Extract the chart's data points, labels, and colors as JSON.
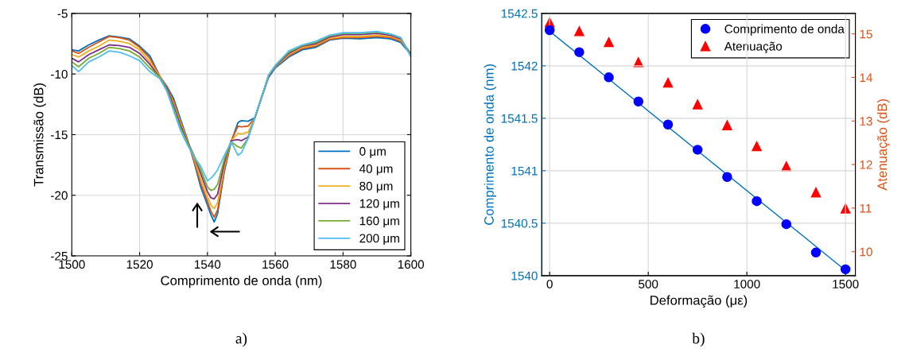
{
  "chart_data": [
    {
      "type": "line",
      "xlabel": "Comprimento de onda (nm)",
      "ylabel": "Transmissão (dB)",
      "x": [
        1500,
        1502,
        1505,
        1508,
        1511,
        1514,
        1517,
        1520,
        1523,
        1526,
        1528,
        1530,
        1532,
        1534,
        1536,
        1538,
        1540,
        1541,
        1542,
        1543,
        1545,
        1547,
        1549,
        1550,
        1552,
        1554,
        1556,
        1558,
        1560,
        1564,
        1568,
        1572,
        1576,
        1580,
        1585,
        1590,
        1594,
        1597,
        1600
      ],
      "series": [
        {
          "name": "0 μm",
          "color": "#0072bd",
          "values": [
            -8.0,
            -8.1,
            -7.6,
            -7.2,
            -6.85,
            -6.95,
            -7.1,
            -7.7,
            -8.5,
            -10.2,
            -11.0,
            -12.0,
            -13.7,
            -15.3,
            -17.2,
            -19.3,
            -20.8,
            -21.6,
            -22.2,
            -21.5,
            -18.0,
            -15.6,
            -14.0,
            -13.85,
            -13.9,
            -13.6,
            -11.9,
            -10.3,
            -9.5,
            -8.6,
            -8.0,
            -7.8,
            -7.2,
            -7.05,
            -7.1,
            -7.0,
            -7.1,
            -7.4,
            -8.4
          ]
        },
        {
          "name": "40 μm",
          "color": "#d95319",
          "values": [
            -8.1,
            -8.3,
            -7.8,
            -7.35,
            -6.9,
            -7.0,
            -7.2,
            -7.8,
            -8.7,
            -10.2,
            -11.1,
            -12.2,
            -13.9,
            -15.4,
            -17.1,
            -19.0,
            -20.5,
            -21.3,
            -21.8,
            -21.2,
            -17.9,
            -15.5,
            -14.3,
            -14.35,
            -14.3,
            -13.6,
            -11.9,
            -10.2,
            -9.4,
            -8.5,
            -7.9,
            -7.7,
            -7.15,
            -7.0,
            -7.0,
            -6.9,
            -7.0,
            -7.3,
            -8.3
          ]
        },
        {
          "name": "80 μm",
          "color": "#edb120",
          "values": [
            -8.4,
            -8.6,
            -8.1,
            -7.7,
            -7.2,
            -7.3,
            -7.5,
            -8.0,
            -9.0,
            -10.2,
            -11.2,
            -12.4,
            -14.0,
            -15.4,
            -16.9,
            -18.6,
            -20.1,
            -20.8,
            -21.1,
            -20.6,
            -17.6,
            -15.5,
            -14.9,
            -14.95,
            -14.8,
            -13.6,
            -11.9,
            -10.2,
            -9.4,
            -8.4,
            -7.8,
            -7.6,
            -7.05,
            -6.9,
            -6.9,
            -6.8,
            -6.9,
            -7.2,
            -8.3
          ]
        },
        {
          "name": "120 μm",
          "color": "#7e2f8e",
          "values": [
            -8.7,
            -9.0,
            -8.4,
            -8.0,
            -7.6,
            -7.65,
            -7.8,
            -8.3,
            -9.2,
            -10.3,
            -11.2,
            -12.6,
            -14.2,
            -15.5,
            -16.7,
            -18.2,
            -19.7,
            -20.2,
            -20.3,
            -19.9,
            -17.3,
            -15.5,
            -15.4,
            -15.5,
            -15.2,
            -13.6,
            -11.9,
            -10.2,
            -9.35,
            -8.3,
            -7.7,
            -7.5,
            -6.95,
            -6.75,
            -6.75,
            -6.65,
            -6.8,
            -7.1,
            -8.4
          ]
        },
        {
          "name": "160 μm",
          "color": "#77ac30",
          "values": [
            -9.0,
            -9.4,
            -8.7,
            -8.3,
            -7.8,
            -7.9,
            -8.1,
            -8.6,
            -9.5,
            -10.3,
            -11.3,
            -12.8,
            -14.4,
            -15.6,
            -16.7,
            -17.9,
            -19.3,
            -19.6,
            -19.5,
            -19.1,
            -17.0,
            -15.6,
            -16.0,
            -16.1,
            -15.3,
            -13.6,
            -11.9,
            -10.1,
            -9.3,
            -8.2,
            -7.65,
            -7.4,
            -6.85,
            -6.65,
            -6.65,
            -6.55,
            -6.7,
            -7.0,
            -8.5
          ]
        },
        {
          "name": "200 μm",
          "color": "#4dbeee",
          "values": [
            -9.3,
            -9.8,
            -9.0,
            -8.6,
            -8.1,
            -8.2,
            -8.5,
            -8.9,
            -9.8,
            -10.4,
            -11.4,
            -13.0,
            -14.6,
            -15.8,
            -16.8,
            -17.6,
            -18.8,
            -18.6,
            -18.3,
            -17.9,
            -16.7,
            -15.6,
            -16.7,
            -16.5,
            -15.3,
            -13.5,
            -11.9,
            -10.1,
            -9.3,
            -8.1,
            -7.6,
            -7.3,
            -6.8,
            -6.6,
            -6.6,
            -6.5,
            -6.7,
            -7.0,
            -8.6
          ]
        }
      ],
      "xlim": [
        1500,
        1600
      ],
      "xticks": [
        1500,
        1520,
        1540,
        1560,
        1580,
        1600
      ],
      "ylim": [
        -25,
        -5
      ],
      "yticks": [
        -25,
        -20,
        -15,
        -10,
        -5
      ],
      "grid": true,
      "legend": "bottom right",
      "line_style": "solid",
      "marker": "none",
      "annotations": [
        "a)"
      ]
    },
    {
      "type": "scatter",
      "xlabel": "Deformação (με)",
      "ylabel": "Comprimento de onda (nm)",
      "y2label": "Atenuação (dB)",
      "x": [
        0,
        150,
        300,
        450,
        600,
        750,
        900,
        1050,
        1200,
        1350,
        1500
      ],
      "series": [
        {
          "name": "Comprimento de onda",
          "color": "#0000ff",
          "marker": "circle",
          "values": [
            1542.34,
            1542.13,
            1541.89,
            1541.66,
            1541.44,
            1541.2,
            1540.94,
            1540.71,
            1540.49,
            1540.22,
            1540.06
          ]
        },
        {
          "name": "Atenuação",
          "color": "#ff0000",
          "marker": "triangle",
          "axis": "y2",
          "values": [
            15.26,
            15.06,
            14.81,
            14.35,
            13.88,
            13.38,
            12.9,
            12.42,
            11.96,
            11.36,
            10.99
          ]
        },
        {
          "type": "line",
          "color": "#0072bd",
          "x": [
            0,
            1500
          ],
          "values": [
            1542.33,
            1540.05
          ]
        }
      ],
      "xlim": [
        -40,
        1550
      ],
      "xticks": [
        0,
        500,
        1000,
        1500
      ],
      "ylim": [
        1540,
        1542.5
      ],
      "yticks": [
        1540,
        1540.5,
        1541,
        1541.5,
        1542,
        1542.5
      ],
      "y2lim": [
        9.45,
        15.47
      ],
      "y2ticks": [
        10,
        11,
        12,
        13,
        14,
        15
      ],
      "grid": true,
      "legend": "top right",
      "annotations": [
        "b)"
      ]
    }
  ]
}
